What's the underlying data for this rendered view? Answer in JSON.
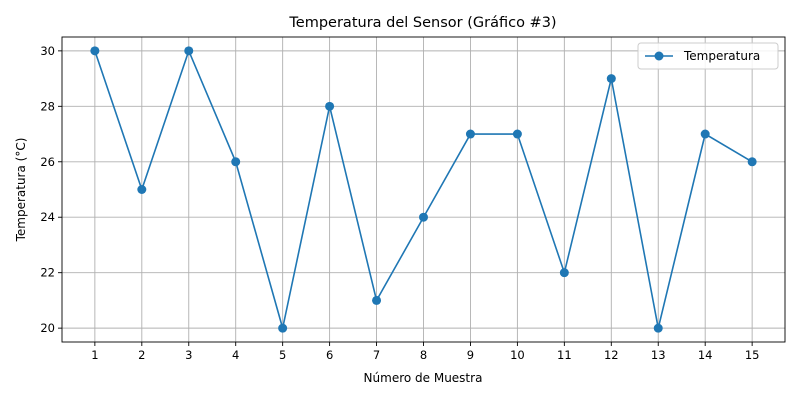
{
  "chart_data": {
    "type": "line",
    "title": "Temperatura del Sensor (Gráfico #3)",
    "xlabel": "Número de Muestra",
    "ylabel": "Temperatura (°C)",
    "x": [
      1,
      2,
      3,
      4,
      5,
      6,
      7,
      8,
      9,
      10,
      11,
      12,
      13,
      14,
      15
    ],
    "series": [
      {
        "name": "Temperatura",
        "values": [
          30,
          25,
          30,
          26,
          20,
          28,
          21,
          24,
          27,
          27,
          22,
          29,
          20,
          27,
          26
        ],
        "color": "#1f77b4",
        "marker": "circle"
      }
    ],
    "xticks": [
      "1",
      "2",
      "3",
      "4",
      "5",
      "6",
      "7",
      "8",
      "9",
      "10",
      "11",
      "12",
      "13",
      "14",
      "15"
    ],
    "yticks": [
      20,
      22,
      24,
      26,
      28,
      30
    ],
    "xlim": [
      0.3,
      15.7
    ],
    "ylim": [
      19.5,
      30.5
    ],
    "grid": true,
    "legend_position": "top-right"
  }
}
